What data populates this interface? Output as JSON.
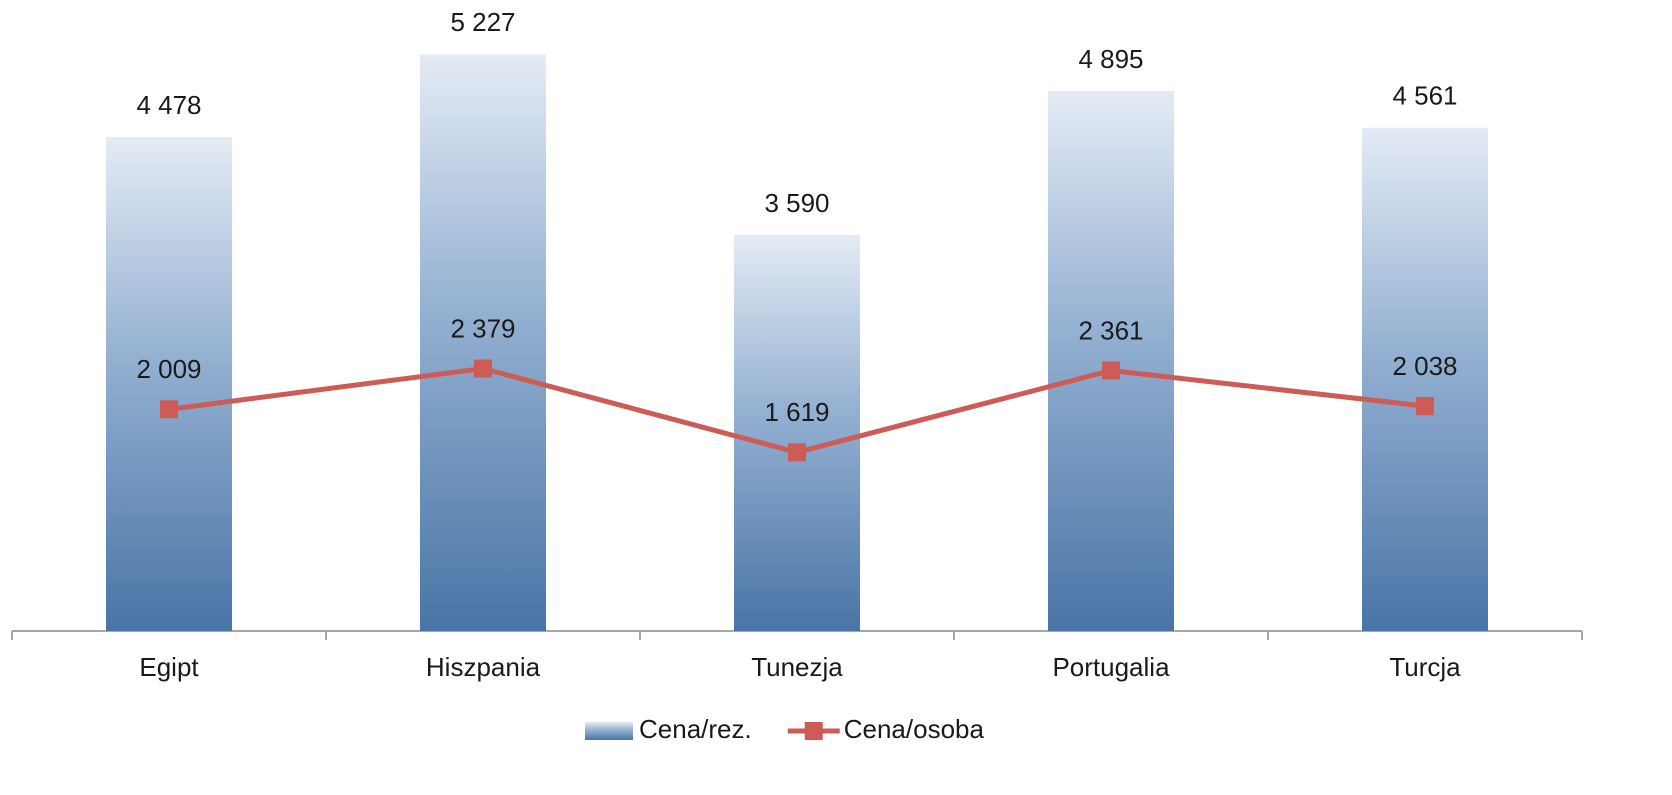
{
  "chart_data": {
    "type": "bar",
    "categories": [
      "Egipt",
      "Hiszpania",
      "Tunezja",
      "Portugalia",
      "Turcja"
    ],
    "ylim": [
      0,
      6000
    ],
    "series": [
      {
        "name": "Cena/rez.",
        "type": "bar",
        "color": "#4a74a6",
        "values": [
          4478,
          5227,
          3590,
          4895,
          4561
        ],
        "value_labels": [
          "4 478",
          "5 227",
          "3 590",
          "4 895",
          "4 561"
        ]
      },
      {
        "name": "Cena/osoba",
        "type": "line",
        "color": "#cd5b56",
        "values": [
          2009,
          2379,
          1619,
          2361,
          2038
        ],
        "value_labels": [
          "2 009",
          "2 379",
          "1 619",
          "2 361",
          "2 038"
        ]
      }
    ]
  }
}
